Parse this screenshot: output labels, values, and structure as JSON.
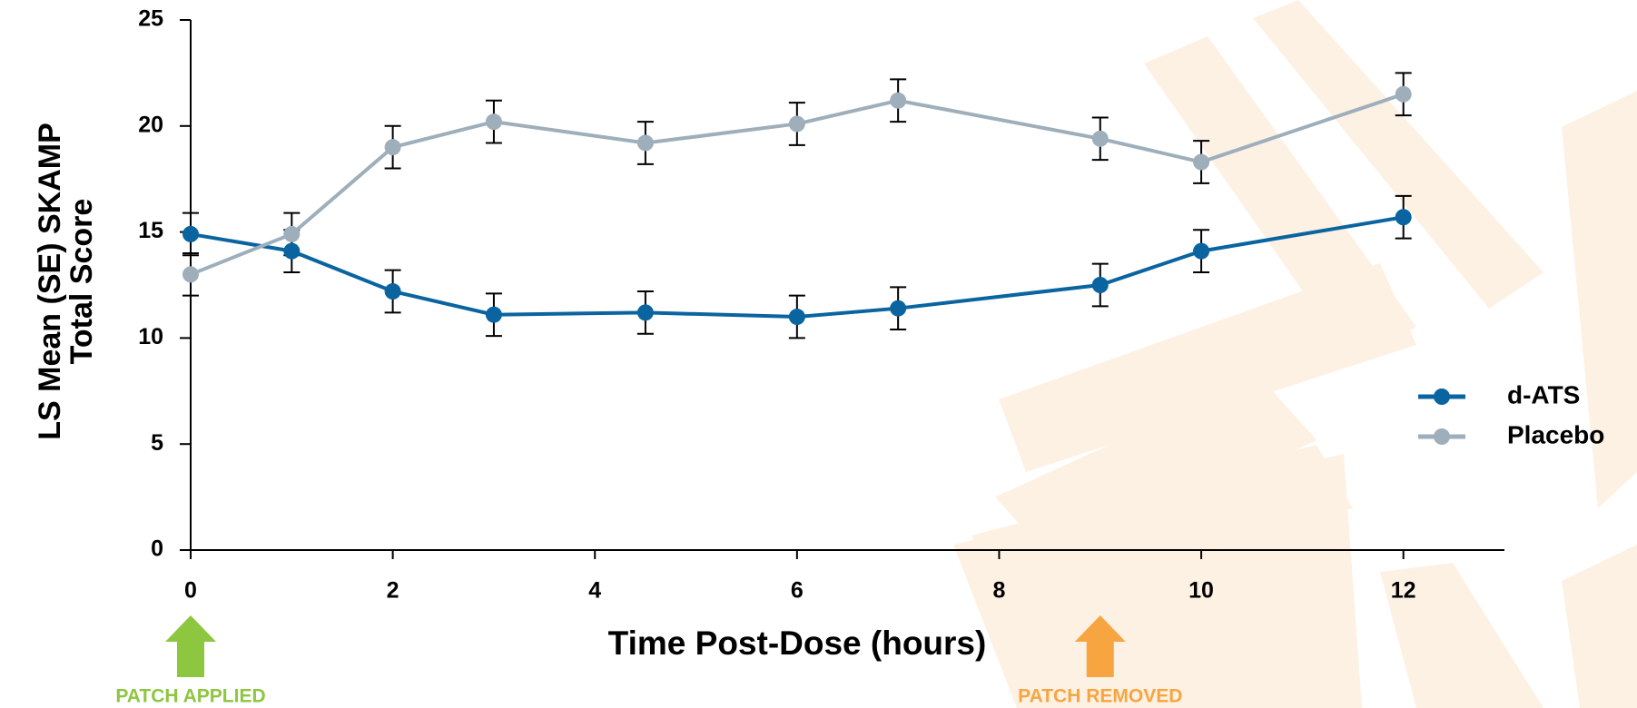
{
  "chart_data": {
    "type": "line",
    "xlabel": "Time Post-Dose (hours)",
    "ylabel": [
      "LS Mean (SE) SKAMP",
      "Total Score"
    ],
    "x": [
      0,
      1,
      2,
      3,
      4.5,
      6,
      7,
      9,
      10,
      12
    ],
    "series": [
      {
        "name": "d-ATS",
        "color": "#0a64a0",
        "values": [
          14.9,
          14.1,
          12.2,
          11.1,
          11.2,
          11.0,
          11.4,
          12.5,
          14.1,
          15.7
        ],
        "errors": [
          1.0,
          1.0,
          1.0,
          1.0,
          1.0,
          1.0,
          1.0,
          1.0,
          1.0,
          1.0
        ]
      },
      {
        "name": "Placebo",
        "color": "#9eafbb",
        "values": [
          13.0,
          14.9,
          19.0,
          20.2,
          19.2,
          20.1,
          21.2,
          19.4,
          18.3,
          21.5
        ],
        "errors": [
          1.0,
          1.0,
          1.0,
          1.0,
          1.0,
          1.0,
          1.0,
          1.0,
          1.0,
          1.0
        ]
      }
    ],
    "xlim": [
      0,
      13
    ],
    "xticks": [
      0,
      2,
      4,
      6,
      8,
      10,
      12
    ],
    "ylim": [
      0,
      25
    ],
    "yticks": [
      0,
      5,
      10,
      15,
      20,
      25
    ],
    "annotations": [
      {
        "text": "PATCH APPLIED",
        "x": 0,
        "color": "#8dc63f"
      },
      {
        "text": "PATCH REMOVED",
        "x": 9,
        "color": "#f7a541"
      }
    ]
  }
}
